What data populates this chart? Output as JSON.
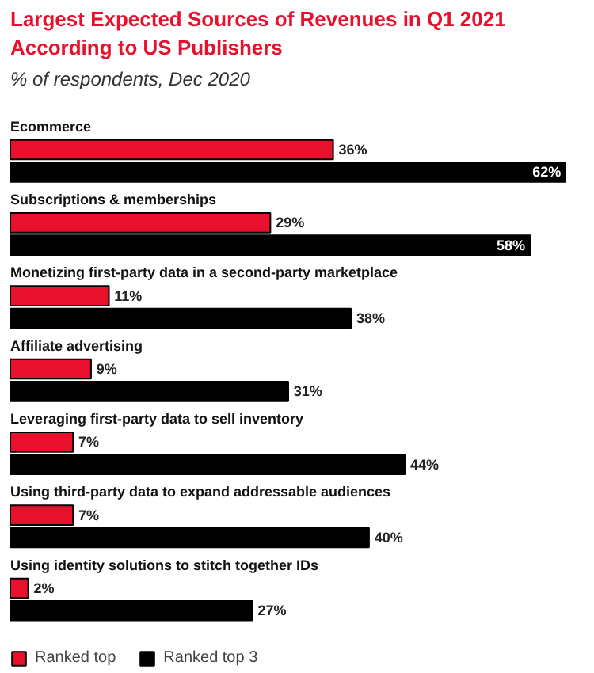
{
  "chart_data": {
    "type": "bar",
    "orientation": "horizontal",
    "title": "Largest Expected Sources of Revenues in Q1 2021 According to US Publishers",
    "subtitle": "% of respondents, Dec 2020",
    "categories": [
      "Ecommerce",
      "Subscriptions & memberships",
      "Monetizing first-party data in a second-party marketplace",
      "Affiliate advertising",
      "Leveraging first-party data to sell inventory",
      "Using third-party data to expand addressable audiences",
      "Using identity solutions to stitch together IDs"
    ],
    "series": [
      {
        "name": "Ranked top",
        "color": "#e8112d",
        "values": [
          36,
          29,
          11,
          9,
          7,
          7,
          2
        ],
        "value_labels": [
          "36%",
          "29%",
          "11%",
          "9%",
          "7%",
          "7%",
          "2%"
        ]
      },
      {
        "name": "Ranked top 3",
        "color": "#000000",
        "values": [
          62,
          58,
          38,
          31,
          44,
          40,
          27
        ],
        "value_labels": [
          "62%",
          "58%",
          "38%",
          "31%",
          "44%",
          "40%",
          "27%"
        ]
      }
    ],
    "legend": "bottom left",
    "grid": false
  }
}
